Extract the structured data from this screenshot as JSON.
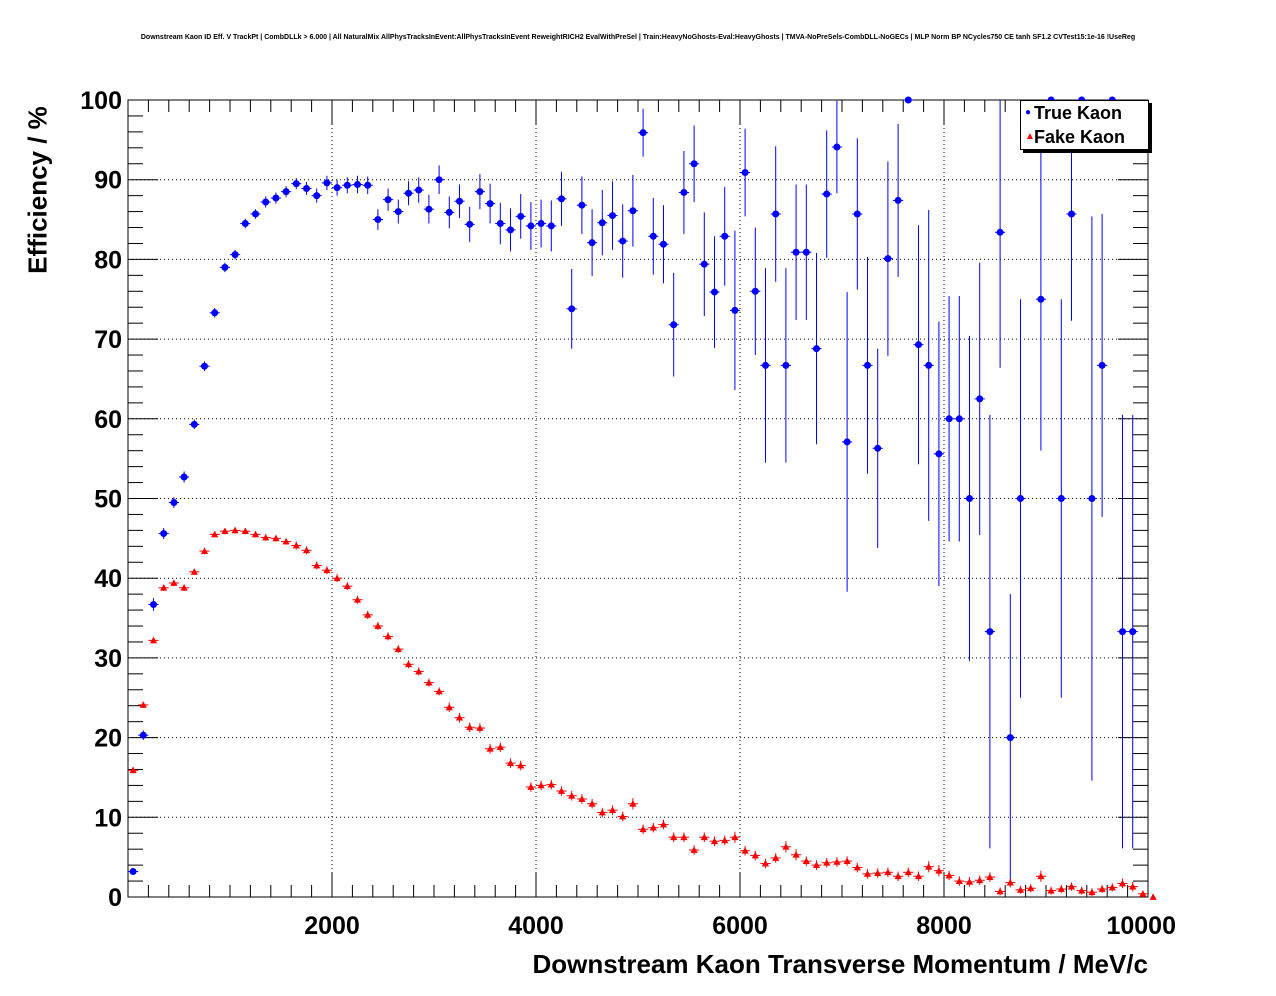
{
  "chart_data": {
    "type": "scatter",
    "title": "Downstream Kaon ID Eff. V TrackPt | CombDLLk > 6.000 | All NaturalMix AllPhysTracksInEvent:AllPhysTracksInEvent ReweightRICH2 EvalWithPreSel | Train:HeavyNoGhosts-Eval:HeavyGhosts | TMVA-NoPreSels-CombDLL-NoGECs | MLP Norm BP NCycles750 CE tanh SF1.2 CVTest15:1e-16 !UseReg",
    "xlabel": "Downstream Kaon Transverse Momentum / MeV/c",
    "ylabel": "Efficiency / %",
    "xlim": [
      0,
      10000
    ],
    "ylim": [
      0,
      100
    ],
    "xticks": [
      2000,
      4000,
      6000,
      8000,
      10000
    ],
    "yticks": [
      0,
      10,
      20,
      30,
      40,
      50,
      60,
      70,
      80,
      90,
      100
    ],
    "grid": true,
    "legend_position": "top-right",
    "bin_width": 100,
    "series": [
      {
        "name": "True Kaon",
        "color": "#0000ff",
        "marker": "circle",
        "x": [
          50,
          150,
          250,
          350,
          450,
          550,
          650,
          750,
          850,
          950,
          1050,
          1150,
          1250,
          1350,
          1450,
          1550,
          1650,
          1750,
          1850,
          1950,
          2050,
          2150,
          2250,
          2350,
          2450,
          2550,
          2650,
          2750,
          2850,
          2950,
          3050,
          3150,
          3250,
          3350,
          3450,
          3550,
          3650,
          3750,
          3850,
          3950,
          4050,
          4150,
          4250,
          4350,
          4450,
          4550,
          4650,
          4750,
          4850,
          4950,
          5050,
          5150,
          5250,
          5350,
          5450,
          5550,
          5650,
          5750,
          5850,
          5950,
          6050,
          6150,
          6250,
          6350,
          6450,
          6550,
          6650,
          6750,
          6850,
          6950,
          7050,
          7150,
          7250,
          7350,
          7450,
          7550,
          7650,
          7750,
          7850,
          7950,
          8050,
          8150,
          8250,
          8350,
          8450,
          8550,
          8650,
          8750,
          8850,
          8950,
          9050,
          9150,
          9250,
          9350,
          9450,
          9550,
          9650,
          9750,
          9850,
          9950
        ],
        "y": [
          3.2,
          20.3,
          36.7,
          45.6,
          49.5,
          52.7,
          59.3,
          66.6,
          73.3,
          79.0,
          80.6,
          84.5,
          85.7,
          87.2,
          87.7,
          88.5,
          89.5,
          88.9,
          88.0,
          89.6,
          89.0,
          89.3,
          89.4,
          89.3,
          85.0,
          87.5,
          86.0,
          88.3,
          88.7,
          86.3,
          90.0,
          85.9,
          87.3,
          84.4,
          88.5,
          87.0,
          84.5,
          83.7,
          85.4,
          84.2,
          84.5,
          84.2,
          87.6,
          73.8,
          86.8,
          82.1,
          84.6,
          85.5,
          82.3,
          86.1,
          95.9,
          82.9,
          81.9,
          71.8,
          88.4,
          92.0,
          79.4,
          75.9,
          82.9,
          73.6,
          90.9,
          76.0,
          66.7,
          85.7,
          66.7,
          80.9,
          80.9,
          68.8,
          88.2,
          94.1,
          57.1,
          85.7,
          66.7,
          56.3,
          80.1,
          87.4,
          100.0,
          69.3,
          66.7,
          55.6,
          60.0,
          60.0,
          50.0,
          62.5,
          33.3,
          83.4,
          20.0,
          50.0,
          null,
          75.0,
          100.0,
          50.0,
          85.7,
          100.0,
          50.0,
          66.7,
          100.0,
          33.3,
          33.3,
          null
        ],
        "y_err": [
          0.3,
          0.6,
          0.8,
          0.7,
          0.7,
          0.7,
          0.6,
          0.6,
          0.6,
          0.6,
          0.6,
          0.6,
          0.6,
          0.7,
          0.7,
          0.7,
          0.7,
          0.8,
          0.9,
          0.9,
          1.0,
          1.0,
          1.1,
          1.1,
          1.3,
          1.4,
          1.5,
          1.5,
          1.6,
          1.8,
          1.8,
          2.0,
          2.1,
          2.2,
          2.2,
          2.5,
          2.6,
          2.7,
          2.8,
          3.0,
          3.0,
          3.2,
          3.4,
          5.0,
          3.6,
          4.2,
          4.1,
          4.3,
          4.6,
          4.5,
          3.0,
          4.8,
          4.9,
          6.5,
          5.2,
          4.8,
          6.5,
          7.0,
          6.2,
          10.0,
          5.5,
          8.0,
          12.2,
          8.5,
          12.2,
          8.5,
          8.5,
          12.0,
          8.0,
          5.8,
          18.8,
          9.5,
          13.6,
          12.5,
          12.2,
          9.6,
          0.0,
          15.0,
          19.5,
          16.6,
          15.4,
          15.4,
          20.4,
          17.1,
          27.2,
          17.0,
          18.0,
          25.0,
          null,
          19.0,
          0.0,
          25.0,
          13.4,
          0.0,
          35.4,
          19.0,
          0.0,
          27.2,
          27.2,
          null
        ]
      },
      {
        "name": "Fake Kaon",
        "color": "#ff0000",
        "marker": "triangle",
        "x": [
          50,
          150,
          250,
          350,
          450,
          550,
          650,
          750,
          850,
          950,
          1050,
          1150,
          1250,
          1350,
          1450,
          1550,
          1650,
          1750,
          1850,
          1950,
          2050,
          2150,
          2250,
          2350,
          2450,
          2550,
          2650,
          2750,
          2850,
          2950,
          3050,
          3150,
          3250,
          3350,
          3450,
          3550,
          3650,
          3750,
          3850,
          3950,
          4050,
          4150,
          4250,
          4350,
          4450,
          4550,
          4650,
          4750,
          4850,
          4950,
          5050,
          5150,
          5250,
          5350,
          5450,
          5550,
          5650,
          5750,
          5850,
          5950,
          6050,
          6150,
          6250,
          6350,
          6450,
          6550,
          6650,
          6750,
          6850,
          6950,
          7050,
          7150,
          7250,
          7350,
          7450,
          7550,
          7650,
          7750,
          7850,
          7950,
          8050,
          8150,
          8250,
          8350,
          8450,
          8550,
          8650,
          8750,
          8850,
          8950,
          9050,
          9150,
          9250,
          9350,
          9450,
          9550,
          9650,
          9750,
          9850,
          9950,
          10050
        ],
        "y": [
          15.9,
          24.1,
          32.2,
          38.8,
          39.4,
          38.8,
          40.8,
          43.4,
          45.5,
          45.9,
          46.0,
          45.9,
          45.5,
          45.1,
          45.0,
          44.6,
          44.1,
          43.5,
          41.6,
          41.0,
          40.0,
          39.0,
          37.3,
          35.4,
          34.0,
          32.7,
          31.1,
          29.2,
          28.3,
          26.9,
          25.8,
          23.8,
          22.5,
          21.3,
          21.2,
          18.6,
          18.8,
          16.8,
          16.5,
          13.8,
          14.0,
          14.1,
          13.3,
          12.7,
          12.3,
          11.7,
          10.6,
          10.9,
          10.1,
          11.7,
          8.5,
          8.7,
          9.1,
          7.5,
          7.5,
          5.9,
          7.5,
          7.0,
          7.1,
          7.5,
          5.8,
          5.2,
          4.2,
          4.9,
          6.3,
          5.3,
          4.5,
          4.0,
          4.3,
          4.4,
          4.5,
          3.7,
          2.9,
          3.0,
          3.1,
          2.6,
          3.1,
          2.6,
          3.8,
          3.3,
          2.7,
          2.0,
          1.9,
          2.1,
          2.5,
          0.7,
          1.8,
          0.9,
          1.1,
          2.6,
          0.8,
          1.0,
          1.3,
          0.8,
          0.6,
          1.0,
          1.2,
          1.7,
          1.3,
          0.4,
          0.0
        ],
        "y_err": [
          0.4,
          0.4,
          0.4,
          0.4,
          0.4,
          0.4,
          0.4,
          0.4,
          0.4,
          0.4,
          0.4,
          0.4,
          0.4,
          0.4,
          0.4,
          0.4,
          0.5,
          0.5,
          0.5,
          0.5,
          0.5,
          0.5,
          0.5,
          0.5,
          0.5,
          0.5,
          0.5,
          0.5,
          0.5,
          0.5,
          0.5,
          0.6,
          0.6,
          0.6,
          0.6,
          0.6,
          0.6,
          0.6,
          0.6,
          0.6,
          0.6,
          0.6,
          0.6,
          0.6,
          0.6,
          0.6,
          0.6,
          0.6,
          0.6,
          0.7,
          0.6,
          0.6,
          0.6,
          0.6,
          0.6,
          0.6,
          0.6,
          0.6,
          0.6,
          0.7,
          0.6,
          0.6,
          0.6,
          0.6,
          0.7,
          0.7,
          0.6,
          0.6,
          0.6,
          0.6,
          0.6,
          0.6,
          0.6,
          0.6,
          0.6,
          0.6,
          0.6,
          0.6,
          0.7,
          0.7,
          0.6,
          0.6,
          0.6,
          0.6,
          0.6,
          0.5,
          0.6,
          0.5,
          0.5,
          0.7,
          0.5,
          0.5,
          0.5,
          0.5,
          0.5,
          0.5,
          0.5,
          0.6,
          0.6,
          0.4,
          0.2
        ]
      }
    ]
  }
}
